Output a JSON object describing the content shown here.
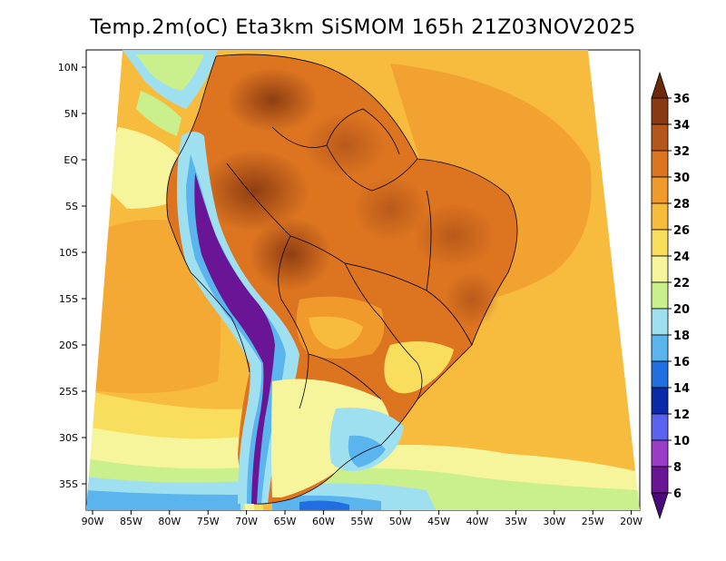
{
  "title": "Temp.2m(oC) Eta3km SiSMOM 165h 21Z03NOV2025",
  "map": {
    "lat_labels": [
      "10N",
      "5N",
      "EQ",
      "5S",
      "10S",
      "15S",
      "20S",
      "25S",
      "30S",
      "35S"
    ],
    "lon_labels": [
      "90W",
      "85W",
      "80W",
      "75W",
      "70W",
      "65W",
      "60W",
      "55W",
      "50W",
      "45W",
      "40W",
      "35W",
      "30W",
      "25W",
      "20W"
    ]
  },
  "colorbar": {
    "labels": [
      "36",
      "34",
      "32",
      "30",
      "28",
      "26",
      "24",
      "22",
      "20",
      "18",
      "16",
      "14",
      "12",
      "10",
      "8",
      "6"
    ],
    "colors": {
      "gt36": "#6b2a0c",
      "34_36": "#8a3a12",
      "32_34": "#b5561a",
      "30_32": "#dc7420",
      "28_30": "#f09a2c",
      "26_28": "#f7bb3d",
      "24_26": "#f9dd5c",
      "22_24": "#f6f59c",
      "20_22": "#c9f08c",
      "18_20": "#9fe0f0",
      "16_18": "#5ab4ee",
      "14_16": "#1f6fe0",
      "12_14": "#0a2aa8",
      "10_12": "#5a62f0",
      "8_10": "#9a3cc8",
      "6_8": "#6a1496",
      "lt6": "#4b0a78"
    }
  }
}
